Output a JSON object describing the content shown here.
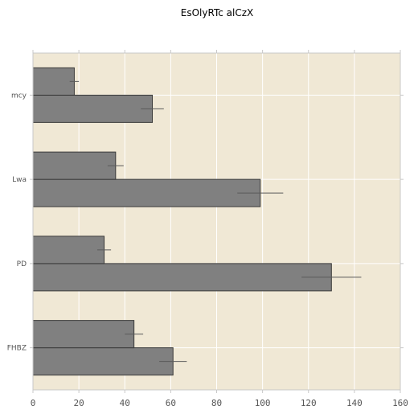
{
  "chart_data": {
    "type": "bar",
    "orientation": "horizontal",
    "title": "EsOlyRTc alCzX",
    "xlabel": "",
    "ylabel": "",
    "categories": [
      "FHBZ",
      "PD",
      "Lwa",
      "mcy"
    ],
    "series": [
      {
        "values": [
          61,
          130,
          99,
          52
        ],
        "errors": [
          6,
          13,
          10,
          5
        ]
      },
      {
        "values": [
          44,
          31,
          36,
          18
        ],
        "errors": [
          4,
          3,
          3.5,
          2
        ]
      }
    ],
    "xlim": [
      0,
      160
    ],
    "xticks": [
      0,
      20,
      40,
      60,
      80,
      100,
      120,
      140,
      160
    ],
    "grid": true,
    "colors": {
      "background": "#f0e8d5",
      "bar_fill": "#808080",
      "bar_edge": "#3a3a3a",
      "error_bar": "#5a5a5a",
      "grid": "#ffffff",
      "axis": "#c8c8c8"
    }
  }
}
